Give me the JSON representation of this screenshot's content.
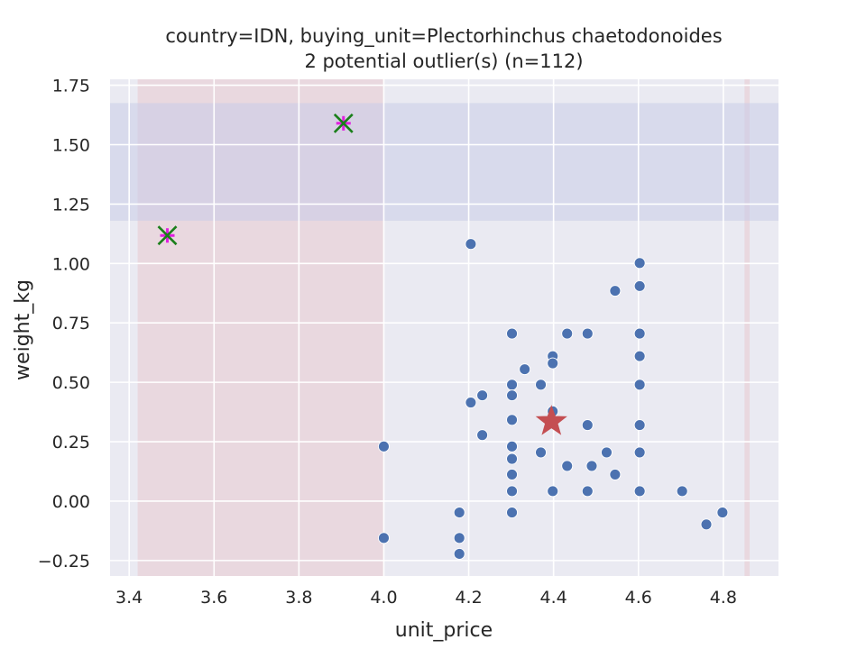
{
  "chart_data": {
    "type": "scatter",
    "title": "country=IDN, buying_unit=Plectorhinchus chaetodonoides",
    "subtitle": "2 potential outlier(s) (n=112)",
    "xlabel": "unit_price",
    "ylabel": "weight_kg",
    "xlim": [
      3.355,
      4.93
    ],
    "ylim": [
      -0.315,
      1.775
    ],
    "xticks": [
      3.4,
      3.6,
      3.8,
      4.0,
      4.2,
      4.4,
      4.6,
      4.8
    ],
    "xtick_labels": [
      "3.4",
      "3.6",
      "3.8",
      "4.0",
      "4.2",
      "4.4",
      "4.6",
      "4.8"
    ],
    "yticks": [
      -0.25,
      0.0,
      0.25,
      0.5,
      0.75,
      1.0,
      1.25,
      1.5,
      1.75
    ],
    "ytick_labels": [
      "−0.25",
      "0.00",
      "0.25",
      "0.50",
      "0.75",
      "1.00",
      "1.25",
      "1.50",
      "1.75"
    ],
    "grid": true,
    "colors": {
      "background": "#eaeaf2",
      "grid": "#ffffff",
      "points": "#4c72b0",
      "x_band": "#e8c8d0",
      "y_band": "#c8cce8",
      "center_star": "#c44e52",
      "outlier_x": "#1a7f1a",
      "outlier_plus": "#e020e0"
    },
    "x_bands": [
      [
        3.42,
        4.0
      ],
      [
        4.85,
        4.862
      ]
    ],
    "y_band": [
      1.18,
      1.675
    ],
    "points": [
      [
        4.0,
        0.23
      ],
      [
        4.0,
        -0.155
      ],
      [
        4.178,
        -0.048
      ],
      [
        4.178,
        -0.155
      ],
      [
        4.178,
        -0.222
      ],
      [
        4.205,
        1.082
      ],
      [
        4.205,
        0.415
      ],
      [
        4.232,
        0.445
      ],
      [
        4.232,
        0.278
      ],
      [
        4.302,
        0.705
      ],
      [
        4.302,
        0.49
      ],
      [
        4.302,
        0.445
      ],
      [
        4.302,
        0.342
      ],
      [
        4.302,
        0.23
      ],
      [
        4.302,
        0.178
      ],
      [
        4.302,
        0.112
      ],
      [
        4.302,
        0.042
      ],
      [
        4.302,
        -0.048
      ],
      [
        4.332,
        0.555
      ],
      [
        4.37,
        0.49
      ],
      [
        4.37,
        0.205
      ],
      [
        4.398,
        0.61
      ],
      [
        4.398,
        0.58
      ],
      [
        4.398,
        0.378
      ],
      [
        4.398,
        0.042
      ],
      [
        4.432,
        0.705
      ],
      [
        4.432,
        0.148
      ],
      [
        4.48,
        0.705
      ],
      [
        4.48,
        0.32
      ],
      [
        4.48,
        0.042
      ],
      [
        4.49,
        0.148
      ],
      [
        4.525,
        0.205
      ],
      [
        4.545,
        0.885
      ],
      [
        4.545,
        0.112
      ],
      [
        4.603,
        1.002
      ],
      [
        4.603,
        0.905
      ],
      [
        4.603,
        0.705
      ],
      [
        4.603,
        0.61
      ],
      [
        4.603,
        0.49
      ],
      [
        4.603,
        0.32
      ],
      [
        4.603,
        0.205
      ],
      [
        4.603,
        0.042
      ],
      [
        4.703,
        0.042
      ],
      [
        4.76,
        -0.098
      ],
      [
        4.798,
        -0.048
      ]
    ],
    "outliers": [
      [
        3.49,
        1.118
      ],
      [
        3.905,
        1.59
      ]
    ],
    "center": [
      4.395,
      0.335
    ]
  }
}
